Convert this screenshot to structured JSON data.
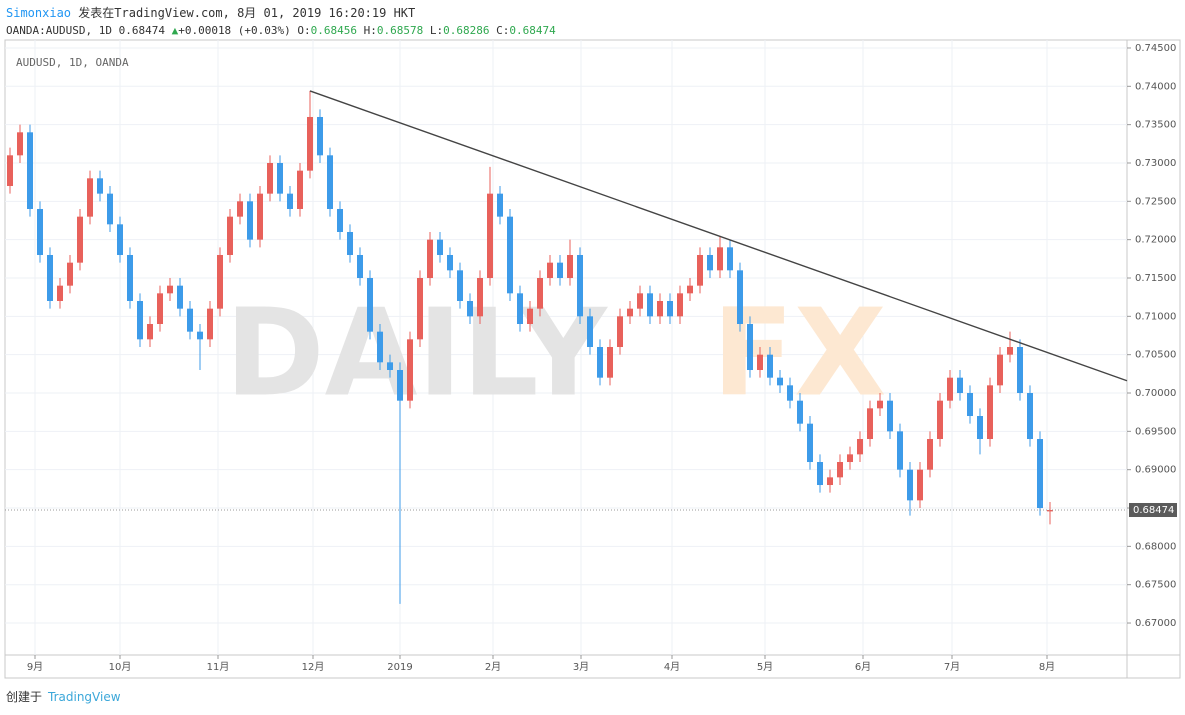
{
  "header": {
    "author": "Simonxiao",
    "published": "发表在TradingView.com, 8月 01, 2019 16:20:19 HKT",
    "symbol": "OANDA:AUDUSD, 1D",
    "price": "0.68474",
    "change": "+0.00018 (+0.03%)",
    "o_label": "O:",
    "o": "0.68456",
    "h_label": "H:",
    "h": "0.68578",
    "l_label": "L:",
    "l": "0.68286",
    "c_label": "C:",
    "c": "0.68474"
  },
  "chart_data": {
    "type": "candlestick",
    "title": "AUDUSD, 1D, OANDA",
    "watermark": [
      "DAILY",
      "FX"
    ],
    "up_color": "#e8615b",
    "down_color": "#3d9be9",
    "open": [
      0.727,
      0.731,
      0.734,
      0.724,
      0.718,
      0.712,
      0.714,
      0.717,
      0.723,
      0.728,
      0.726,
      0.722,
      0.718,
      0.712,
      0.707,
      0.709,
      0.713,
      0.714,
      0.711,
      0.708,
      0.707,
      0.711,
      0.718,
      0.723,
      0.725,
      0.72,
      0.726,
      0.73,
      0.726,
      0.724,
      0.729,
      0.736,
      0.731,
      0.724,
      0.721,
      0.718,
      0.715,
      0.708,
      0.704,
      0.703,
      0.699,
      0.707,
      0.715,
      0.72,
      0.718,
      0.716,
      0.712,
      0.71,
      0.715,
      0.726,
      0.723,
      0.713,
      0.709,
      0.711,
      0.715,
      0.717,
      0.715,
      0.718,
      0.71,
      0.706,
      0.702,
      0.706,
      0.71,
      0.711,
      0.713,
      0.71,
      0.712,
      0.71,
      0.713,
      0.714,
      0.718,
      0.716,
      0.719,
      0.716,
      0.709,
      0.703,
      0.705,
      0.702,
      0.701,
      0.699,
      0.696,
      0.691,
      0.688,
      0.689,
      0.691,
      0.692,
      0.694,
      0.698,
      0.699,
      0.695,
      0.69,
      0.686,
      0.69,
      0.694,
      0.699,
      0.702,
      0.7,
      0.697,
      0.694,
      0.701,
      0.705,
      0.706,
      0.7,
      0.694,
      0.68456
    ],
    "high": [
      0.732,
      0.735,
      0.735,
      0.725,
      0.719,
      0.715,
      0.718,
      0.724,
      0.729,
      0.729,
      0.727,
      0.723,
      0.719,
      0.713,
      0.71,
      0.714,
      0.715,
      0.715,
      0.712,
      0.709,
      0.712,
      0.719,
      0.724,
      0.726,
      0.726,
      0.727,
      0.731,
      0.731,
      0.727,
      0.73,
      0.7394,
      0.737,
      0.732,
      0.725,
      0.722,
      0.719,
      0.716,
      0.709,
      0.705,
      0.704,
      0.708,
      0.716,
      0.721,
      0.721,
      0.719,
      0.717,
      0.713,
      0.716,
      0.7295,
      0.727,
      0.724,
      0.714,
      0.712,
      0.716,
      0.718,
      0.718,
      0.72,
      0.719,
      0.711,
      0.707,
      0.707,
      0.711,
      0.712,
      0.714,
      0.714,
      0.713,
      0.713,
      0.714,
      0.715,
      0.719,
      0.719,
      0.7205,
      0.72,
      0.717,
      0.71,
      0.706,
      0.706,
      0.703,
      0.702,
      0.7,
      0.697,
      0.692,
      0.69,
      0.692,
      0.693,
      0.695,
      0.699,
      0.7,
      0.7,
      0.696,
      0.691,
      0.691,
      0.695,
      0.7,
      0.703,
      0.703,
      0.701,
      0.698,
      0.702,
      0.706,
      0.708,
      0.707,
      0.701,
      0.695,
      0.68578
    ],
    "low": [
      0.726,
      0.73,
      0.723,
      0.717,
      0.711,
      0.711,
      0.713,
      0.716,
      0.722,
      0.725,
      0.721,
      0.717,
      0.711,
      0.706,
      0.706,
      0.708,
      0.712,
      0.71,
      0.707,
      0.703,
      0.706,
      0.71,
      0.717,
      0.722,
      0.719,
      0.719,
      0.725,
      0.725,
      0.723,
      0.723,
      0.728,
      0.73,
      0.723,
      0.72,
      0.717,
      0.714,
      0.707,
      0.703,
      0.702,
      0.6725,
      0.698,
      0.706,
      0.714,
      0.717,
      0.715,
      0.711,
      0.709,
      0.709,
      0.714,
      0.722,
      0.712,
      0.708,
      0.708,
      0.71,
      0.714,
      0.714,
      0.714,
      0.709,
      0.705,
      0.701,
      0.701,
      0.705,
      0.709,
      0.71,
      0.709,
      0.709,
      0.709,
      0.709,
      0.712,
      0.713,
      0.715,
      0.715,
      0.715,
      0.708,
      0.702,
      0.702,
      0.701,
      0.7,
      0.698,
      0.695,
      0.69,
      0.687,
      0.687,
      0.688,
      0.69,
      0.691,
      0.693,
      0.697,
      0.694,
      0.689,
      0.684,
      0.685,
      0.689,
      0.693,
      0.698,
      0.699,
      0.696,
      0.692,
      0.693,
      0.7,
      0.704,
      0.699,
      0.693,
      0.684,
      0.68286
    ],
    "close": [
      0.731,
      0.734,
      0.724,
      0.718,
      0.712,
      0.714,
      0.717,
      0.723,
      0.728,
      0.726,
      0.722,
      0.718,
      0.712,
      0.707,
      0.709,
      0.713,
      0.714,
      0.711,
      0.708,
      0.707,
      0.711,
      0.718,
      0.723,
      0.725,
      0.72,
      0.726,
      0.73,
      0.726,
      0.724,
      0.729,
      0.736,
      0.731,
      0.724,
      0.721,
      0.718,
      0.715,
      0.708,
      0.704,
      0.703,
      0.699,
      0.707,
      0.715,
      0.72,
      0.718,
      0.716,
      0.712,
      0.71,
      0.715,
      0.726,
      0.723,
      0.713,
      0.709,
      0.711,
      0.715,
      0.717,
      0.715,
      0.718,
      0.71,
      0.706,
      0.702,
      0.706,
      0.71,
      0.711,
      0.713,
      0.71,
      0.712,
      0.71,
      0.713,
      0.714,
      0.718,
      0.716,
      0.719,
      0.716,
      0.709,
      0.703,
      0.705,
      0.702,
      0.701,
      0.699,
      0.696,
      0.691,
      0.688,
      0.689,
      0.691,
      0.692,
      0.694,
      0.698,
      0.699,
      0.695,
      0.69,
      0.686,
      0.69,
      0.694,
      0.699,
      0.702,
      0.7,
      0.697,
      0.694,
      0.701,
      0.705,
      0.706,
      0.7,
      0.694,
      0.685,
      0.68474
    ],
    "trendline": {
      "x": [
        30,
        111.7
      ],
      "y": [
        0.7394,
        0.7016
      ]
    },
    "last_price": 0.68474,
    "xlim": [
      -0.5,
      111.7
    ],
    "xticks": [
      {
        "value": 2.5,
        "label": "9月"
      },
      {
        "value": 11,
        "label": "10月"
      },
      {
        "value": 20.8,
        "label": "11月"
      },
      {
        "value": 30.3,
        "label": "12月"
      },
      {
        "value": 39,
        "label": "2019"
      },
      {
        "value": 48.3,
        "label": "2月"
      },
      {
        "value": 57.1,
        "label": "3月"
      },
      {
        "value": 66.2,
        "label": "4月"
      },
      {
        "value": 75.5,
        "label": "5月"
      },
      {
        "value": 85.3,
        "label": "6月"
      },
      {
        "value": 94.2,
        "label": "7月"
      },
      {
        "value": 103.7,
        "label": "8月"
      }
    ],
    "ylim": [
      0.66583,
      0.74604
    ],
    "yticks": [
      {
        "value": 0.67,
        "label": "0.67000"
      },
      {
        "value": 0.675,
        "label": "0.67500"
      },
      {
        "value": 0.68,
        "label": "0.68000"
      },
      {
        "value": 0.685,
        "label": "0.68500"
      },
      {
        "value": 0.69,
        "label": "0.69000"
      },
      {
        "value": 0.695,
        "label": "0.69500"
      },
      {
        "value": 0.7,
        "label": "0.70000"
      },
      {
        "value": 0.705,
        "label": "0.70500"
      },
      {
        "value": 0.71,
        "label": "0.71000"
      },
      {
        "value": 0.715,
        "label": "0.71500"
      },
      {
        "value": 0.72,
        "label": "0.72000"
      },
      {
        "value": 0.725,
        "label": "0.72500"
      },
      {
        "value": 0.73,
        "label": "0.73000"
      },
      {
        "value": 0.735,
        "label": "0.73500"
      },
      {
        "value": 0.74,
        "label": "0.74000"
      },
      {
        "value": 0.745,
        "label": "0.74500"
      }
    ],
    "grid": true
  },
  "footer": {
    "created": "创建于",
    "brand": "TradingView"
  }
}
